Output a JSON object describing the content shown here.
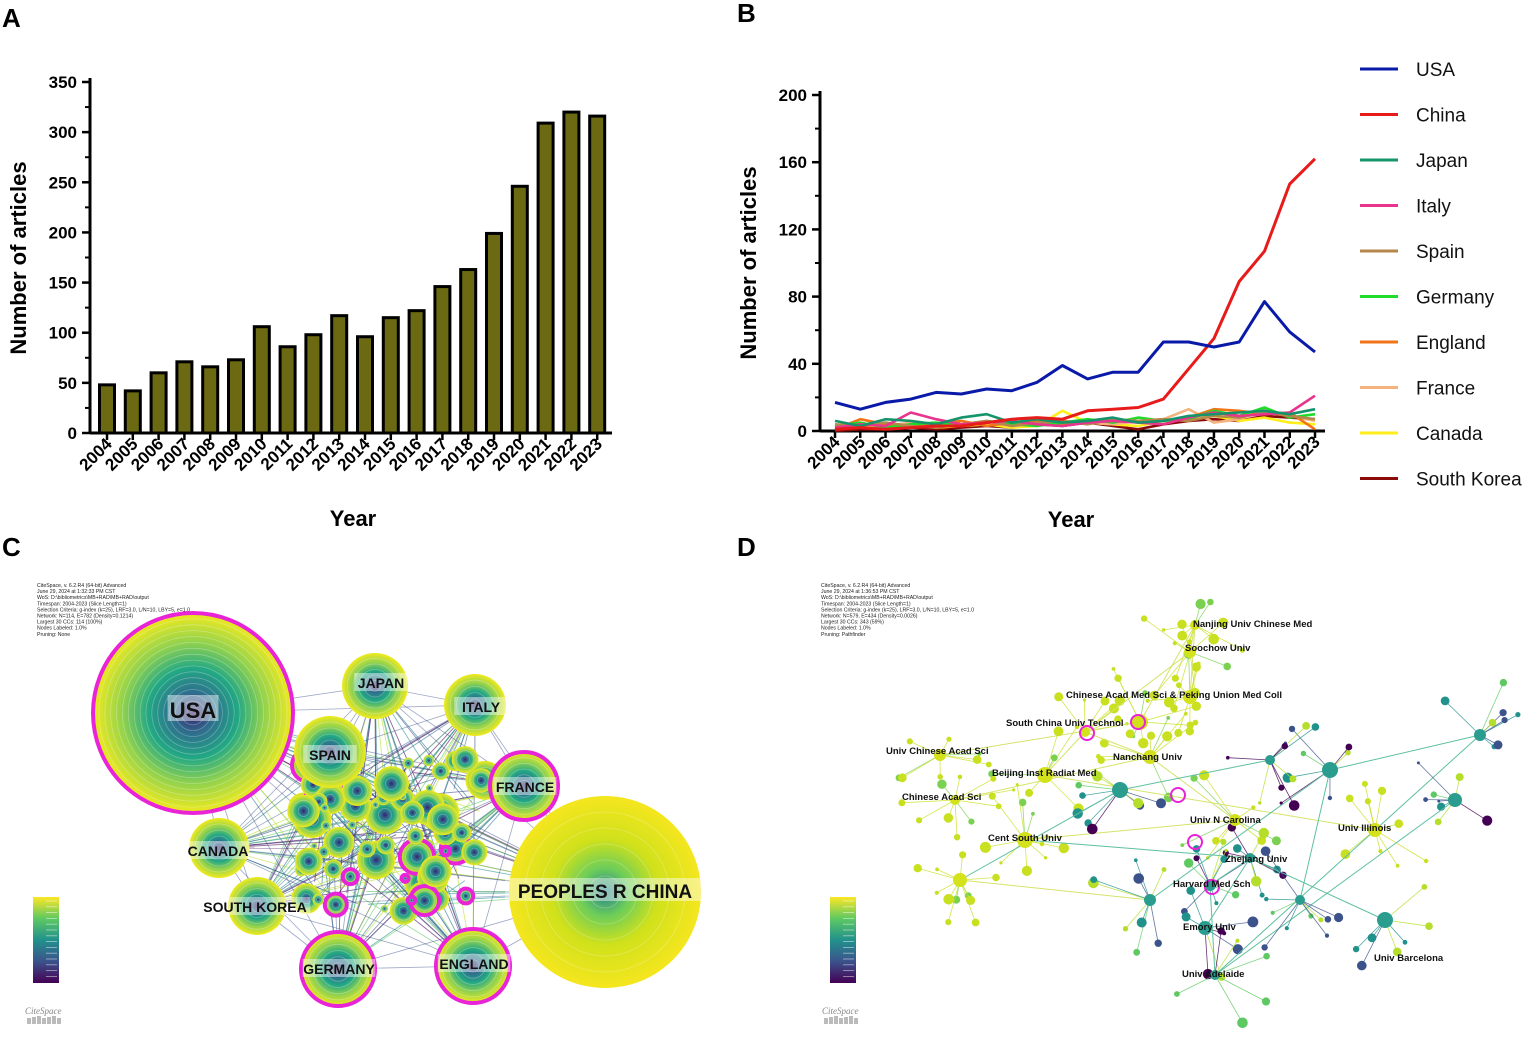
{
  "panels": {
    "a": "A",
    "b": "B",
    "c": "C",
    "d": "D"
  },
  "chart_data": [
    {
      "type": "bar",
      "panel": "A",
      "title": "",
      "xlabel": "Year",
      "ylabel": "Number of articles",
      "ylim": [
        0,
        350
      ],
      "yticks": [
        0,
        50,
        100,
        150,
        200,
        250,
        300,
        350
      ],
      "categories": [
        "2004",
        "2005",
        "2006",
        "2007",
        "2008",
        "2009",
        "2010",
        "2011",
        "2012",
        "2013",
        "2014",
        "2015",
        "2016",
        "2017",
        "2018",
        "2019",
        "2020",
        "2021",
        "2022",
        "2023"
      ],
      "values": [
        48,
        42,
        60,
        71,
        66,
        73,
        106,
        86,
        98,
        117,
        96,
        115,
        122,
        146,
        163,
        199,
        246,
        309,
        320,
        316
      ],
      "color": "#6b6a12"
    },
    {
      "type": "line",
      "panel": "B",
      "xlabel": "Year",
      "ylabel": "Number of articles",
      "ylim": [
        0,
        200
      ],
      "yticks": [
        0,
        40,
        80,
        120,
        160,
        200
      ],
      "categories": [
        "2004",
        "2005",
        "2006",
        "2007",
        "2008",
        "2009",
        "2010",
        "2011",
        "2012",
        "2013",
        "2014",
        "2015",
        "2016",
        "2017",
        "2018",
        "2019",
        "2020",
        "2021",
        "2022",
        "2023"
      ],
      "series": [
        {
          "name": "USA",
          "color": "#0a1aa8",
          "values": [
            17,
            13,
            17,
            19,
            23,
            22,
            25,
            24,
            29,
            39,
            31,
            35,
            35,
            53,
            53,
            50,
            53,
            77,
            59,
            47
          ]
        },
        {
          "name": "China",
          "color": "#e81b1b",
          "values": [
            1,
            2,
            1,
            2,
            3,
            3,
            5,
            7,
            8,
            7,
            12,
            13,
            14,
            19,
            37,
            55,
            89,
            107,
            147,
            162
          ]
        },
        {
          "name": "Japan",
          "color": "#15936a",
          "values": [
            6,
            3,
            7,
            6,
            4,
            8,
            10,
            5,
            7,
            5,
            6,
            8,
            5,
            6,
            9,
            10,
            11,
            12,
            10,
            13
          ]
        },
        {
          "name": "Italy",
          "color": "#e8348c",
          "values": [
            2,
            4,
            3,
            11,
            7,
            4,
            5,
            6,
            4,
            3,
            5,
            6,
            5,
            4,
            8,
            11,
            9,
            10,
            11,
            21
          ]
        },
        {
          "name": "Spain",
          "color": "#b5874a",
          "values": [
            4,
            3,
            5,
            3,
            2,
            4,
            6,
            3,
            5,
            6,
            4,
            7,
            6,
            7,
            6,
            9,
            8,
            11,
            9,
            7
          ]
        },
        {
          "name": "Germany",
          "color": "#1fdc2a",
          "values": [
            3,
            5,
            2,
            4,
            5,
            3,
            6,
            4,
            3,
            5,
            7,
            5,
            8,
            6,
            7,
            12,
            9,
            14,
            8,
            10
          ]
        },
        {
          "name": "England",
          "color": "#f07418",
          "values": [
            1,
            7,
            4,
            3,
            4,
            6,
            3,
            5,
            6,
            4,
            5,
            7,
            5,
            6,
            8,
            13,
            12,
            10,
            11,
            1
          ]
        },
        {
          "name": "France",
          "color": "#f3b27e",
          "values": [
            2,
            4,
            3,
            5,
            3,
            4,
            5,
            3,
            4,
            6,
            5,
            4,
            6,
            7,
            13,
            5,
            7,
            13,
            9,
            6
          ]
        },
        {
          "name": "Canada",
          "color": "#ffee1a",
          "values": [
            1,
            3,
            2,
            4,
            2,
            3,
            4,
            2,
            3,
            12,
            5,
            4,
            3,
            6,
            7,
            9,
            6,
            8,
            5,
            4
          ]
        },
        {
          "name": "South Korea",
          "color": "#8b0a0a",
          "values": [
            0,
            1,
            1,
            2,
            1,
            2,
            3,
            2,
            4,
            3,
            5,
            3,
            1,
            4,
            6,
            7,
            6,
            9,
            8,
            7
          ]
        }
      ]
    }
  ],
  "panel_c": {
    "meta_lines": [
      "CiteSpace, v. 6.2.R4 (64-bit) Advanced",
      "June 29, 2024 at 1:32:33 PM CST",
      "WoS: D:\\bibliometrics\\MB+RAD\\MB+RAD\\output",
      "Timespan: 2004-2023 (Slice Length=1)",
      "Selection Criteria: g-index (k=25), LRF=3.0, L/N=10, LBY=5, e=1.0",
      "Network: N=114, E=782 (Density=0.1214)",
      "Largest 30 CCs: 114 (100%)",
      "Nodes Labeled: 1.0%",
      "Pruning: None"
    ],
    "countries": [
      "USA",
      "JAPAN",
      "ITALY",
      "SPAIN",
      "FRANCE",
      "CANADA",
      "PEOPLES R CHINA",
      "SOUTH KOREA",
      "GERMANY",
      "ENGLAND"
    ],
    "logo": "CiteSpace"
  },
  "panel_d": {
    "meta_lines": [
      "CiteSpace, v. 6.2.R4 (64-bit) Advanced",
      "June 29, 2024 at 1:36:53 PM CST",
      "WoS: D:\\bibliometrics\\MB+RAD\\MB+RAD\\output",
      "Timespan: 2004-2023 (Slice Length=1)",
      "Selection Criteria: g-index (k=25), LRF=3.0, L/N=10, LBY=5, e=1.0",
      "Network: N=579, E=434 (Density=0.0026)",
      "Largest 30 CCs: 343 (59%)",
      "Nodes Labeled: 1.0%",
      "Pruning: Pathfinder"
    ],
    "institutions": [
      "Nanjing Univ Chinese Med",
      "Soochow Univ",
      "Chinese Acad Med Sci & Peking Union Med Coll",
      "South China Univ Technol",
      "Univ Chinese Acad Sci",
      "Nanchang Univ",
      "Beijing Inst Radiat Med",
      "Chinese Acad Sci",
      "Univ N Carolina",
      "Univ Illinois",
      "Cent South Univ",
      "Zhejiang Univ",
      "Harvard Med Sch",
      "Emory Univ",
      "Univ Barcelona",
      "Univ Adelaide"
    ],
    "logo": "CiteSpace"
  }
}
